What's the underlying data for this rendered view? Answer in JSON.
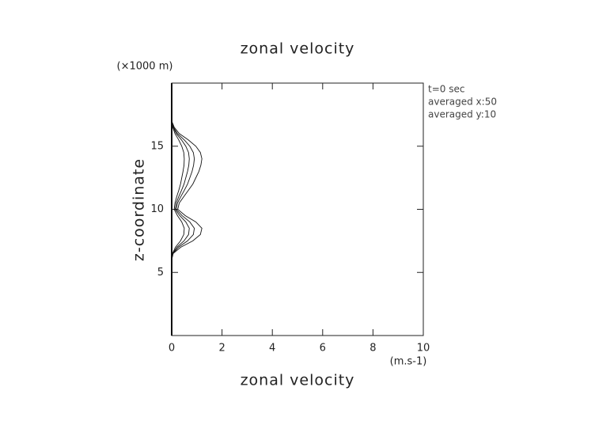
{
  "chart_data": {
    "type": "line",
    "title": "zonal velocity",
    "x_label": "zonal velocity",
    "x_unit": "(m.s-1)",
    "y_label": "z-coordinate",
    "y_unit": "(×1000 m)",
    "annotations": [
      "t=0 sec",
      "averaged  x:50",
      "averaged  y:10"
    ],
    "y": [
      0,
      2,
      4,
      6,
      6.5,
      7,
      7.5,
      8,
      8.5,
      9,
      9.5,
      10,
      10.5,
      11,
      11.5,
      12,
      12.5,
      13,
      13.5,
      14,
      14.5,
      15,
      15.5,
      16,
      16.5,
      17,
      18,
      20
    ],
    "series": [
      {
        "color": "#111111",
        "values": [
          0,
          0,
          0,
          0,
          0.06,
          0.36,
          0.84,
          1.14,
          1.2,
          0.96,
          0.54,
          0.24,
          0.3,
          0.48,
          0.66,
          0.84,
          0.96,
          1.08,
          1.16,
          1.2,
          1.14,
          0.96,
          0.66,
          0.3,
          0.1,
          0,
          0,
          0
        ]
      },
      {
        "color": "#111111",
        "values": [
          0,
          0,
          0,
          0,
          0.05,
          0.27,
          0.63,
          0.86,
          0.9,
          0.72,
          0.41,
          0.18,
          0.23,
          0.36,
          0.5,
          0.63,
          0.72,
          0.81,
          0.87,
          0.9,
          0.86,
          0.72,
          0.5,
          0.23,
          0.07,
          0,
          0,
          0
        ]
      },
      {
        "color": "#111111",
        "values": [
          0,
          0,
          0,
          0,
          0.04,
          0.21,
          0.49,
          0.67,
          0.7,
          0.56,
          0.32,
          0.14,
          0.18,
          0.28,
          0.39,
          0.49,
          0.56,
          0.63,
          0.68,
          0.7,
          0.67,
          0.56,
          0.39,
          0.18,
          0.06,
          0,
          0,
          0
        ]
      },
      {
        "color": "#111111",
        "values": [
          0,
          0,
          0,
          0,
          0.03,
          0.15,
          0.35,
          0.48,
          0.5,
          0.4,
          0.23,
          0.1,
          0.13,
          0.2,
          0.28,
          0.35,
          0.4,
          0.45,
          0.49,
          0.5,
          0.48,
          0.4,
          0.28,
          0.13,
          0.04,
          0,
          0,
          0
        ]
      }
    ],
    "xlim": [
      0,
      10
    ],
    "xticks": [
      0,
      2,
      4,
      6,
      8,
      10
    ],
    "ylim": [
      0,
      20
    ],
    "yticks": [
      5,
      10,
      15
    ]
  }
}
